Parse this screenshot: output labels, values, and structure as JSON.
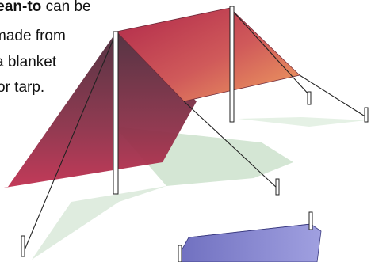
{
  "caption": {
    "bold_term": "lean-to",
    "rest_line1": "can be",
    "line2": "made from",
    "line3": "a blanket",
    "line4": "or tarp."
  },
  "colors": {
    "tarp_edge_dark": "#b0284a",
    "tarp_edge_warm": "#f0a060",
    "tarp_side": "#6e3040",
    "shadow": "#d4e6d4",
    "tent_blue": "#7a7ac8",
    "rope": "#222222"
  }
}
